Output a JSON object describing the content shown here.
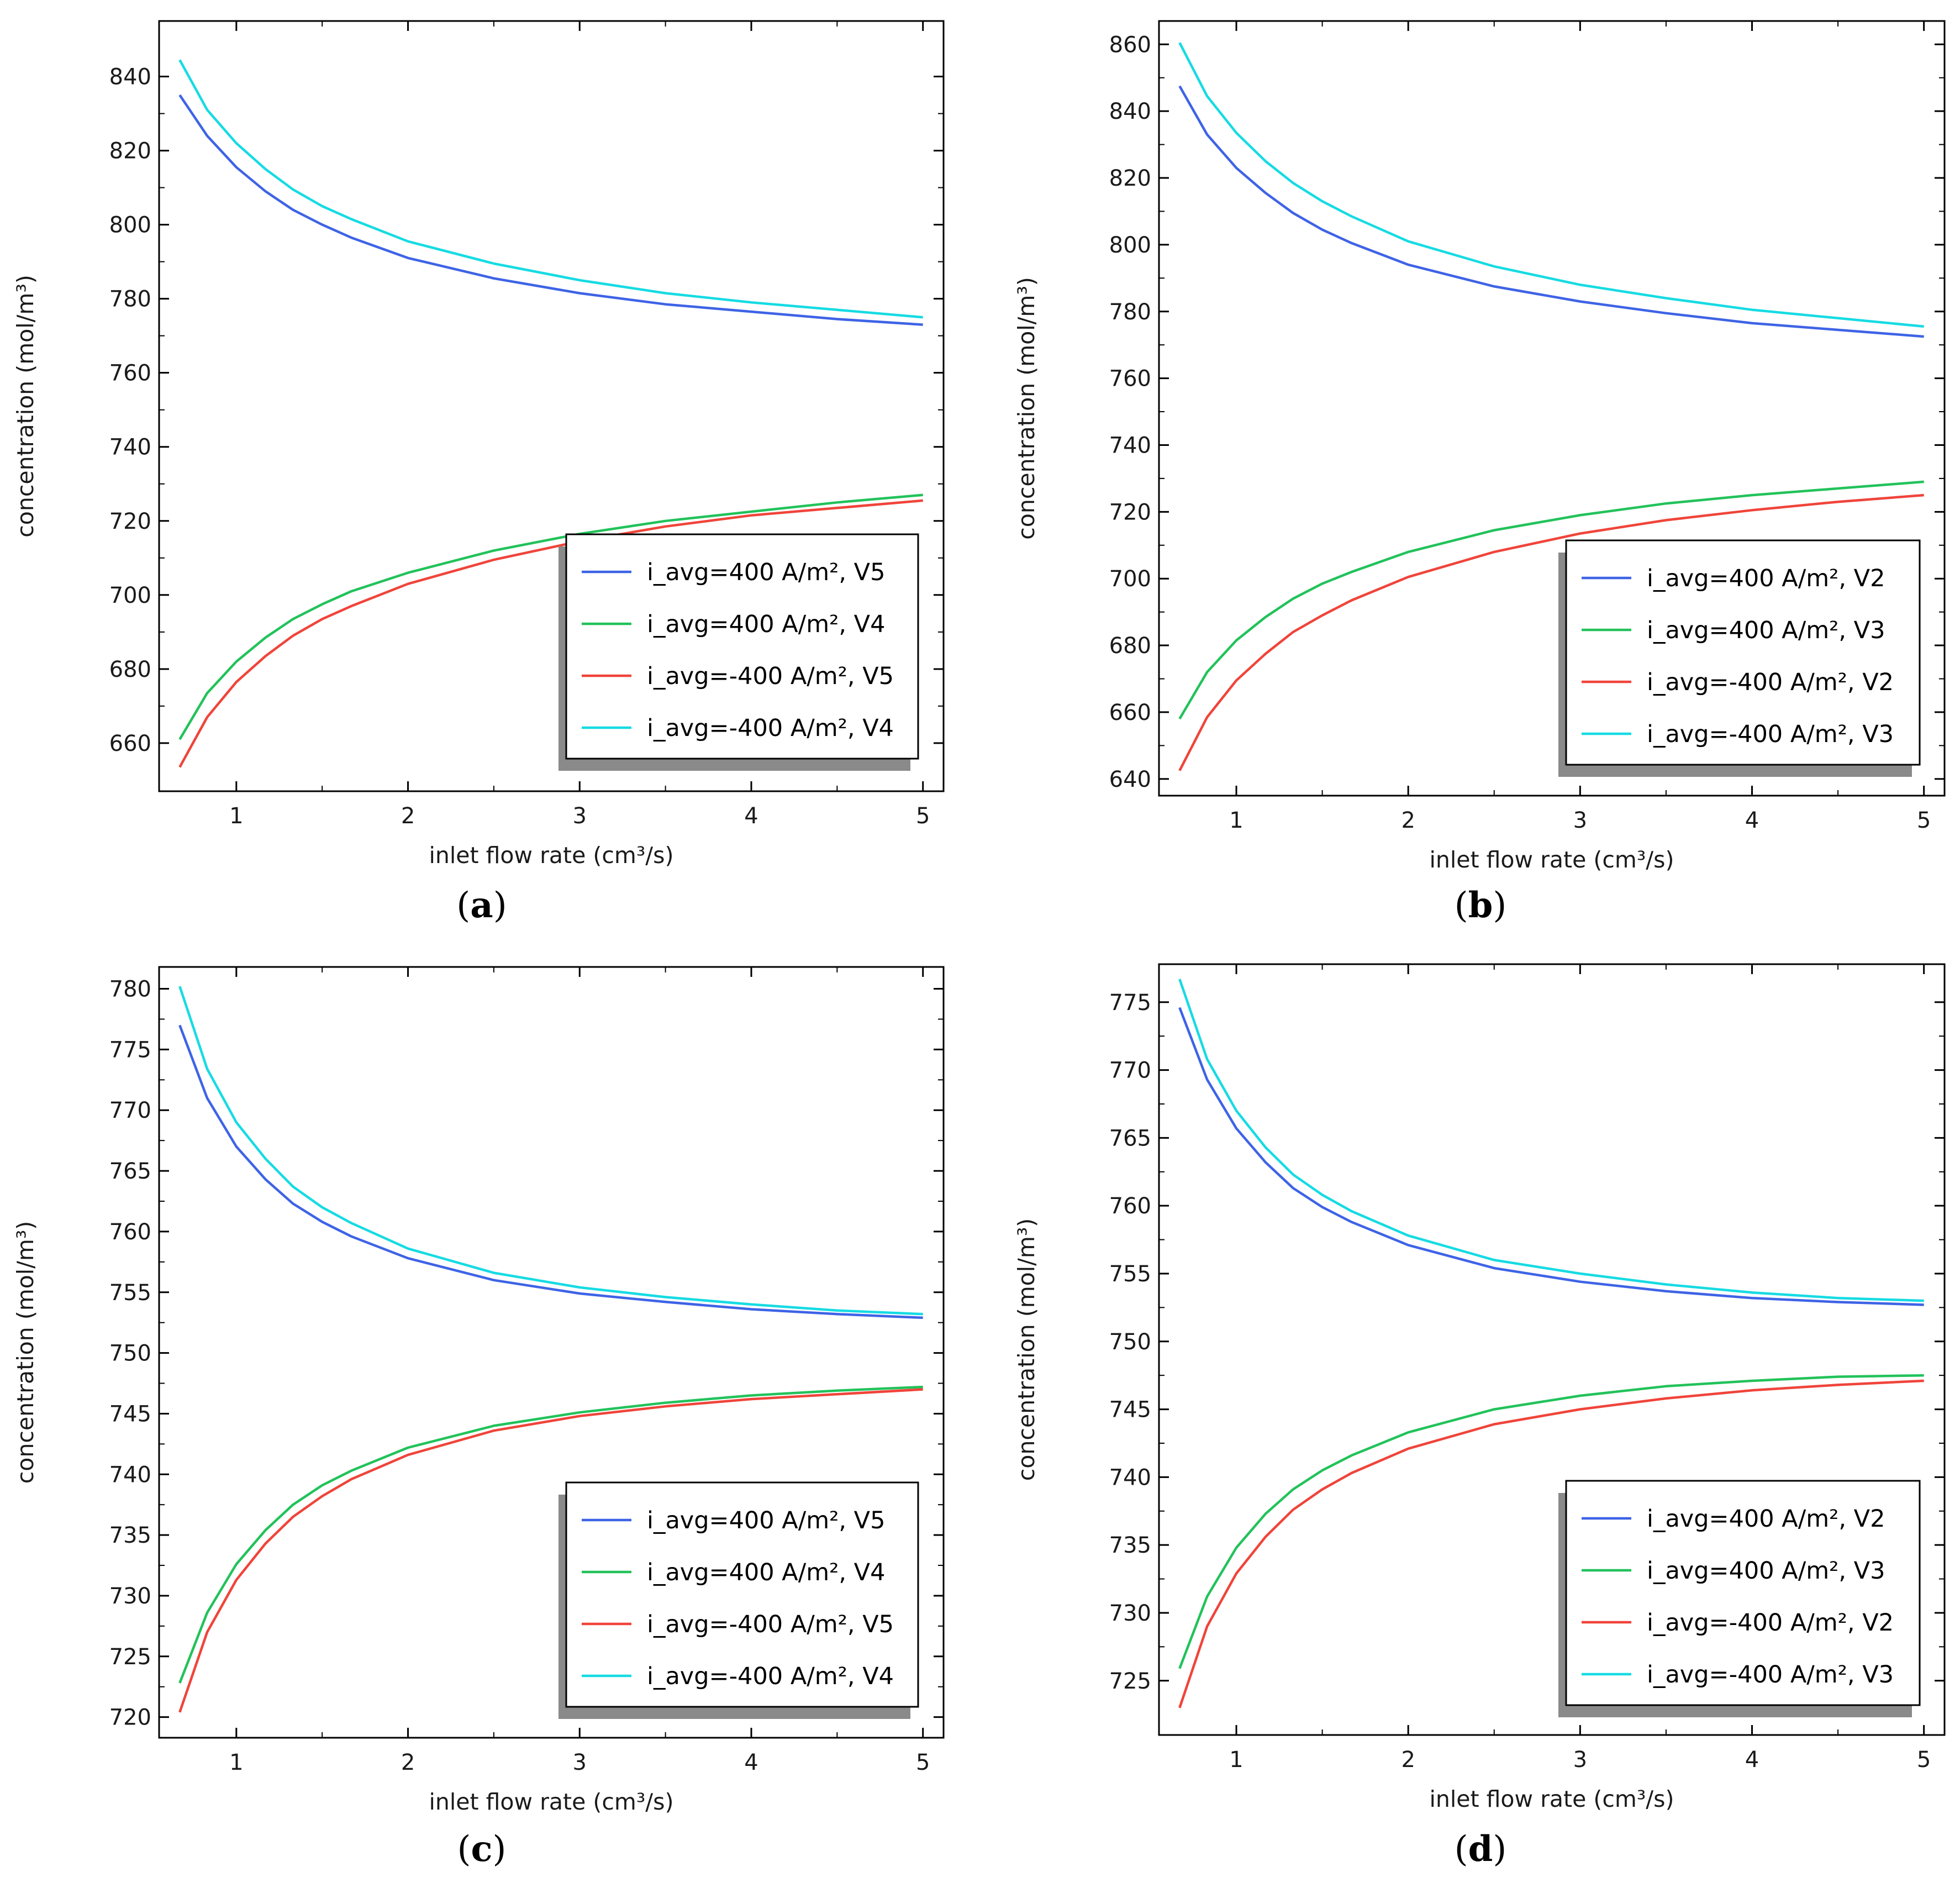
{
  "colors": {
    "blue": "#3e63e6",
    "green": "#22c25a",
    "red": "#f0443a",
    "cyan": "#16dbe3"
  },
  "chart_data": [
    {
      "id": "a",
      "type": "line",
      "panel_label": "a",
      "xlabel": "inlet flow rate (cm³/s)",
      "ylabel": "concentration (mol/m³)",
      "xlim": [
        0.55,
        5.12
      ],
      "ylim": [
        647,
        855
      ],
      "xticks": [
        "1",
        "2",
        "3",
        "4",
        "5"
      ],
      "yticks": [
        "660",
        "680",
        "700",
        "720",
        "740",
        "760",
        "780",
        "800",
        "820",
        "840"
      ],
      "series": [
        {
          "name": "i_avg=400 A/m², V5",
          "color": "blue",
          "x": [
            0.67,
            0.83,
            1.0,
            1.17,
            1.33,
            1.5,
            1.67,
            2.0,
            2.5,
            3.0,
            3.5,
            4.0,
            4.5,
            5.0
          ],
          "y": [
            835.0,
            824.0,
            815.5,
            809.0,
            804.0,
            800.0,
            796.5,
            791.0,
            785.5,
            781.5,
            778.5,
            776.5,
            774.5,
            773.0
          ]
        },
        {
          "name": "i_avg=400 A/m², V4",
          "color": "green",
          "x": [
            0.67,
            0.83,
            1.0,
            1.17,
            1.33,
            1.5,
            1.67,
            2.0,
            2.5,
            3.0,
            3.5,
            4.0,
            4.5,
            5.0
          ],
          "y": [
            661.0,
            673.5,
            682.0,
            688.5,
            693.5,
            697.5,
            701.0,
            706.0,
            712.0,
            716.5,
            720.0,
            722.5,
            725.0,
            727.0
          ]
        },
        {
          "name": "i_avg=-400 A/m², V5",
          "color": "red",
          "x": [
            0.67,
            0.83,
            1.0,
            1.17,
            1.33,
            1.5,
            1.67,
            2.0,
            2.5,
            3.0,
            3.5,
            4.0,
            4.5,
            5.0
          ],
          "y": [
            653.5,
            667.0,
            676.5,
            683.5,
            689.0,
            693.5,
            697.0,
            703.0,
            709.5,
            714.5,
            718.5,
            721.5,
            723.5,
            725.5
          ]
        },
        {
          "name": "i_avg=-400 A/m², V4",
          "color": "cyan",
          "x": [
            0.67,
            0.83,
            1.0,
            1.17,
            1.33,
            1.5,
            1.67,
            2.0,
            2.5,
            3.0,
            3.5,
            4.0,
            4.5,
            5.0
          ],
          "y": [
            844.5,
            831.0,
            822.0,
            815.0,
            809.5,
            805.0,
            801.5,
            795.5,
            789.5,
            785.0,
            781.5,
            779.0,
            777.0,
            775.0
          ]
        }
      ]
    },
    {
      "id": "b",
      "type": "line",
      "panel_label": "b",
      "xlabel": "inlet flow rate (cm³/s)",
      "ylabel": "concentration (mol/m³)",
      "xlim": [
        0.55,
        5.12
      ],
      "ylim": [
        635,
        867
      ],
      "xticks": [
        "1",
        "2",
        "3",
        "4",
        "5"
      ],
      "yticks": [
        "640",
        "660",
        "680",
        "700",
        "720",
        "740",
        "760",
        "780",
        "800",
        "820",
        "840",
        "860"
      ],
      "series": [
        {
          "name": "i_avg=400 A/m², V2",
          "color": "blue",
          "x": [
            0.67,
            0.83,
            1.0,
            1.17,
            1.33,
            1.5,
            1.67,
            2.0,
            2.5,
            3.0,
            3.5,
            4.0,
            4.5,
            5.0
          ],
          "y": [
            847.5,
            833.0,
            823.0,
            815.5,
            809.5,
            804.5,
            800.5,
            794.0,
            787.5,
            783.0,
            779.5,
            776.5,
            774.5,
            772.5
          ]
        },
        {
          "name": "i_avg=400 A/m², V3",
          "color": "green",
          "x": [
            0.67,
            0.83,
            1.0,
            1.17,
            1.33,
            1.5,
            1.67,
            2.0,
            2.5,
            3.0,
            3.5,
            4.0,
            4.5,
            5.0
          ],
          "y": [
            658.0,
            672.0,
            681.5,
            688.5,
            694.0,
            698.5,
            702.0,
            708.0,
            714.5,
            719.0,
            722.5,
            725.0,
            727.0,
            729.0
          ]
        },
        {
          "name": "i_avg=-400 A/m², V2",
          "color": "red",
          "x": [
            0.67,
            0.83,
            1.0,
            1.17,
            1.33,
            1.5,
            1.67,
            2.0,
            2.5,
            3.0,
            3.5,
            4.0,
            4.5,
            5.0
          ],
          "y": [
            642.5,
            658.5,
            669.5,
            677.5,
            684.0,
            689.0,
            693.5,
            700.5,
            708.0,
            713.5,
            717.5,
            720.5,
            723.0,
            725.0
          ]
        },
        {
          "name": "i_avg=-400 A/m², V3",
          "color": "cyan",
          "x": [
            0.67,
            0.83,
            1.0,
            1.17,
            1.33,
            1.5,
            1.67,
            2.0,
            2.5,
            3.0,
            3.5,
            4.0,
            4.5,
            5.0
          ],
          "y": [
            860.5,
            844.5,
            833.5,
            825.0,
            818.5,
            813.0,
            808.5,
            801.0,
            793.5,
            788.0,
            784.0,
            780.5,
            778.0,
            775.5
          ]
        }
      ]
    },
    {
      "id": "c",
      "type": "line",
      "panel_label": "c",
      "xlabel": "inlet flow rate (cm³/s)",
      "ylabel": "concentration (mol/m³)",
      "xlim": [
        0.55,
        5.12
      ],
      "ylim": [
        718.3,
        781.8
      ],
      "xticks": [
        "1",
        "2",
        "3",
        "4",
        "5"
      ],
      "yticks": [
        "720",
        "725",
        "730",
        "735",
        "740",
        "745",
        "750",
        "755",
        "760",
        "765",
        "770",
        "775",
        "780"
      ],
      "series": [
        {
          "name": "i_avg=400 A/m², V5",
          "color": "blue",
          "x": [
            0.67,
            0.83,
            1.0,
            1.17,
            1.33,
            1.5,
            1.67,
            2.0,
            2.5,
            3.0,
            3.5,
            4.0,
            4.5,
            5.0
          ],
          "y": [
            777.0,
            771.0,
            767.0,
            764.3,
            762.3,
            760.8,
            759.6,
            757.8,
            756.0,
            754.9,
            754.2,
            753.6,
            753.2,
            752.9
          ]
        },
        {
          "name": "i_avg=400 A/m², V4",
          "color": "green",
          "x": [
            0.67,
            0.83,
            1.0,
            1.17,
            1.33,
            1.5,
            1.67,
            2.0,
            2.5,
            3.0,
            3.5,
            4.0,
            4.5,
            5.0
          ],
          "y": [
            722.8,
            728.6,
            732.6,
            735.4,
            737.5,
            739.1,
            740.3,
            742.2,
            744.0,
            745.1,
            745.9,
            746.5,
            746.9,
            747.2
          ]
        },
        {
          "name": "i_avg=-400 A/m², V5",
          "color": "red",
          "x": [
            0.67,
            0.83,
            1.0,
            1.17,
            1.33,
            1.5,
            1.67,
            2.0,
            2.5,
            3.0,
            3.5,
            4.0,
            4.5,
            5.0
          ],
          "y": [
            720.4,
            727.0,
            731.3,
            734.3,
            736.5,
            738.2,
            739.6,
            741.6,
            743.6,
            744.8,
            745.6,
            746.2,
            746.6,
            747.0
          ]
        },
        {
          "name": "i_avg=-400 A/m², V4",
          "color": "cyan",
          "x": [
            0.67,
            0.83,
            1.0,
            1.17,
            1.33,
            1.5,
            1.67,
            2.0,
            2.5,
            3.0,
            3.5,
            4.0,
            4.5,
            5.0
          ],
          "y": [
            780.2,
            773.4,
            769.0,
            766.0,
            763.7,
            762.0,
            760.7,
            758.6,
            756.6,
            755.4,
            754.6,
            754.0,
            753.5,
            753.2
          ]
        }
      ]
    },
    {
      "id": "d",
      "type": "line",
      "panel_label": "d",
      "xlabel": "inlet flow rate (cm³/s)",
      "ylabel": "concentration (mol/m³)",
      "xlim": [
        0.55,
        5.12
      ],
      "ylim": [
        721.0,
        777.8
      ],
      "xticks": [
        "1",
        "2",
        "3",
        "4",
        "5"
      ],
      "yticks": [
        "725",
        "730",
        "735",
        "740",
        "745",
        "750",
        "755",
        "760",
        "765",
        "770",
        "775"
      ],
      "series": [
        {
          "name": "i_avg=400 A/m², V2",
          "color": "blue",
          "x": [
            0.67,
            0.83,
            1.0,
            1.17,
            1.33,
            1.5,
            1.67,
            2.0,
            2.5,
            3.0,
            3.5,
            4.0,
            4.5,
            5.0
          ],
          "y": [
            774.6,
            769.3,
            765.7,
            763.2,
            761.3,
            759.9,
            758.8,
            757.1,
            755.4,
            754.4,
            753.7,
            753.2,
            752.9,
            752.7
          ]
        },
        {
          "name": "i_avg=400 A/m², V3",
          "color": "green",
          "x": [
            0.67,
            0.83,
            1.0,
            1.17,
            1.33,
            1.5,
            1.67,
            2.0,
            2.5,
            3.0,
            3.5,
            4.0,
            4.5,
            5.0
          ],
          "y": [
            725.9,
            731.2,
            734.8,
            737.3,
            739.1,
            740.5,
            741.6,
            743.3,
            745.0,
            746.0,
            746.7,
            747.1,
            747.4,
            747.5
          ]
        },
        {
          "name": "i_avg=-400 A/m², V2",
          "color": "red",
          "x": [
            0.67,
            0.83,
            1.0,
            1.17,
            1.33,
            1.5,
            1.67,
            2.0,
            2.5,
            3.0,
            3.5,
            4.0,
            4.5,
            5.0
          ],
          "y": [
            723.0,
            729.0,
            732.9,
            735.6,
            737.6,
            739.1,
            740.3,
            742.1,
            743.9,
            745.0,
            745.8,
            746.4,
            746.8,
            747.1
          ]
        },
        {
          "name": "i_avg=-400 A/m², V3",
          "color": "cyan",
          "x": [
            0.67,
            0.83,
            1.0,
            1.17,
            1.33,
            1.5,
            1.67,
            2.0,
            2.5,
            3.0,
            3.5,
            4.0,
            4.5,
            5.0
          ],
          "y": [
            776.7,
            770.8,
            767.0,
            764.3,
            762.3,
            760.8,
            759.6,
            757.8,
            756.0,
            755.0,
            754.2,
            753.6,
            753.2,
            753.0
          ]
        }
      ]
    }
  ]
}
